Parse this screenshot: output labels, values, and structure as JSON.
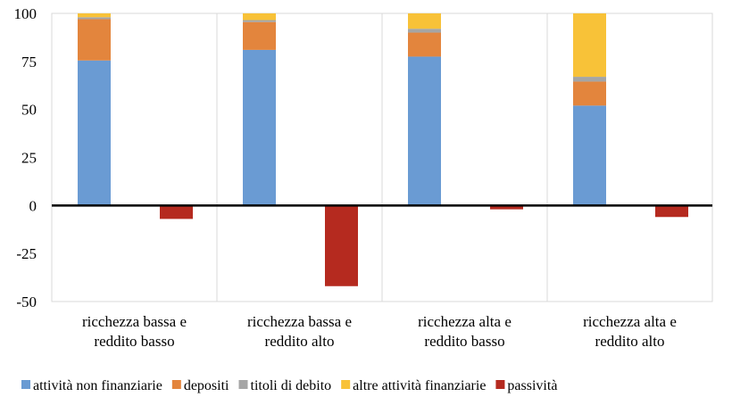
{
  "chart_data": {
    "type": "bar",
    "stacked": true,
    "categories": [
      [
        "ricchezza bassa e",
        "reddito basso"
      ],
      [
        "ricchezza bassa e",
        "reddito alto"
      ],
      [
        "ricchezza alta e",
        "reddito basso"
      ],
      [
        "ricchezza alta e",
        "reddito alto"
      ]
    ],
    "asset_series": [
      {
        "name": "attività non finanziarie",
        "color": "#6A9BD3",
        "values": [
          75.5,
          81,
          77.5,
          52
        ]
      },
      {
        "name": "depositi",
        "color": "#E3853D",
        "values": [
          21.5,
          14.5,
          12.5,
          12.5
        ]
      },
      {
        "name": "titoli di debito",
        "color": "#A5A5A5",
        "values": [
          1,
          1,
          2,
          2.5
        ]
      },
      {
        "name": "altre attività finanziarie",
        "color": "#F8C238",
        "values": [
          2,
          3.5,
          8,
          33
        ]
      }
    ],
    "liability_series": {
      "name": "passività",
      "color": "#B52A1F",
      "values": [
        -7,
        -42,
        -2,
        -6
      ]
    },
    "yticks": [
      "100",
      "75",
      "50",
      "25",
      "0",
      "-25",
      "-50"
    ],
    "ylim": [
      -50,
      100
    ],
    "legend_position": "bottom",
    "xlabel": "",
    "ylabel": ""
  }
}
